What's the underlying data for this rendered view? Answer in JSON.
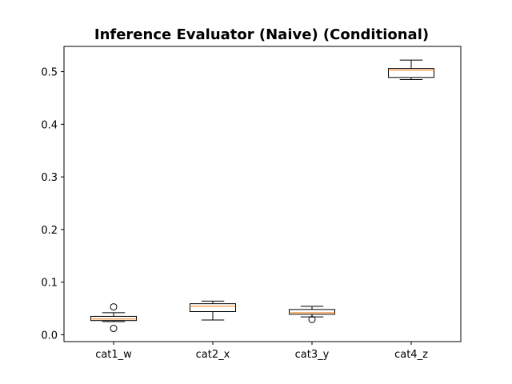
{
  "chart_data": {
    "type": "box",
    "title": "Inference Evaluator (Naive) (Conditional)",
    "xlabel": "",
    "ylabel": "",
    "categories": [
      "cat1_w",
      "cat2_x",
      "cat3_y",
      "cat4_z"
    ],
    "ylim": [
      -0.013,
      0.548
    ],
    "yticks": [
      0.0,
      0.1,
      0.2,
      0.3,
      0.4,
      0.5
    ],
    "ytick_labels": [
      "0.0",
      "0.1",
      "0.2",
      "0.3",
      "0.4",
      "0.5"
    ],
    "grid": false,
    "boxes": [
      {
        "category": "cat1_w",
        "whisker_low": 0.025,
        "q1": 0.027,
        "median": 0.03,
        "q3": 0.035,
        "whisker_high": 0.042,
        "outliers": [
          0.053,
          0.012
        ]
      },
      {
        "category": "cat2_x",
        "whisker_low": 0.028,
        "q1": 0.044,
        "median": 0.054,
        "q3": 0.059,
        "whisker_high": 0.064,
        "outliers": []
      },
      {
        "category": "cat3_y",
        "whisker_low": 0.034,
        "q1": 0.039,
        "median": 0.042,
        "q3": 0.048,
        "whisker_high": 0.054,
        "outliers": [
          0.029
        ]
      },
      {
        "category": "cat4_z",
        "whisker_low": 0.485,
        "q1": 0.489,
        "median": 0.503,
        "q3": 0.506,
        "whisker_high": 0.522,
        "outliers": []
      }
    ],
    "colors": {
      "box": "#000000",
      "median": "#ff7f0e",
      "outlier_edge": "#000000"
    }
  }
}
